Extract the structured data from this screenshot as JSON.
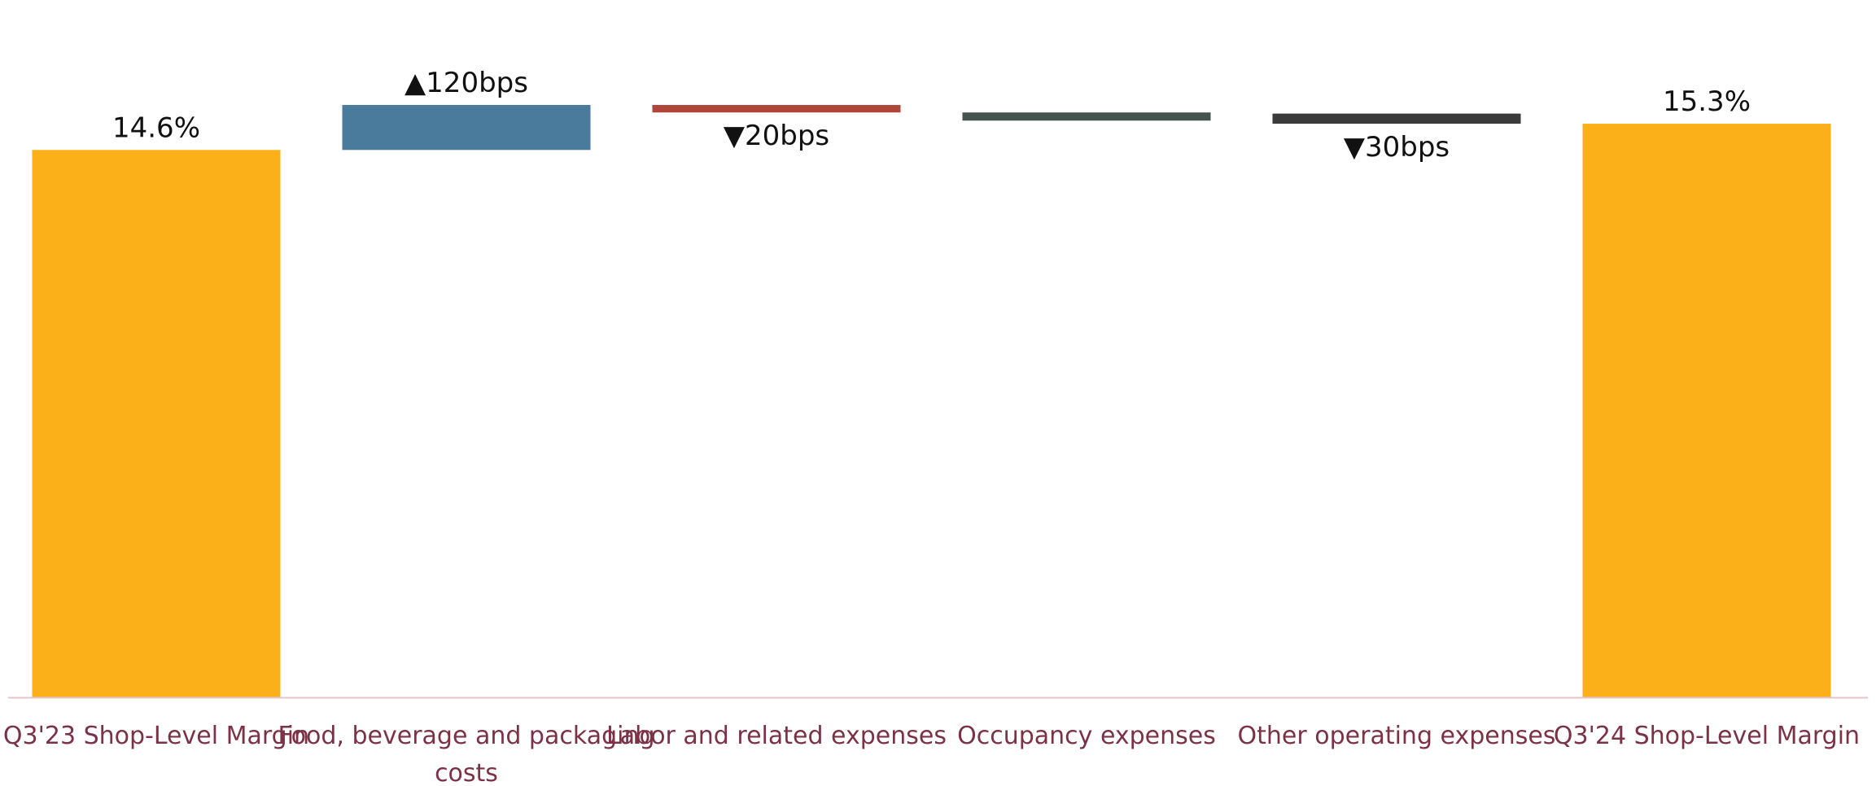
{
  "chart_data": {
    "type": "bar",
    "subtype": "waterfall",
    "title": "",
    "xlabel": "",
    "ylabel": "",
    "ylim": [
      0,
      18.6
    ],
    "grid": false,
    "legend": "none",
    "categories": [
      [
        "Q3'23 Shop-Level Margin"
      ],
      [
        "Food, beverage and packaging",
        "costs"
      ],
      [
        "Labor and related expenses"
      ],
      [
        "Occupancy expenses"
      ],
      [
        "Other operating expenses"
      ],
      [
        "Q3'24 Shop-Level Margin"
      ]
    ],
    "bars": [
      {
        "kind": "total",
        "start": 0,
        "end": 14.6,
        "label": "14.6%",
        "color": "#FBB019"
      },
      {
        "kind": "increase",
        "start": 14.6,
        "end": 15.8,
        "label": "▲120bps",
        "color": "#4A7B9D"
      },
      {
        "kind": "decrease",
        "start": 15.8,
        "end": 15.6,
        "label": "▼20bps",
        "color": "#B0453A"
      },
      {
        "kind": "decrease",
        "start": 15.6,
        "end": 15.57,
        "label": "",
        "color": "#45544F"
      },
      {
        "kind": "decrease",
        "start": 15.57,
        "end": 15.3,
        "label": "▼30bps",
        "color": "#3A3A3A"
      },
      {
        "kind": "total",
        "start": 0,
        "end": 15.3,
        "label": "15.3%",
        "color": "#FBB019"
      }
    ],
    "axis_color": "#E7C3CC",
    "label_color": "#7B3247"
  }
}
